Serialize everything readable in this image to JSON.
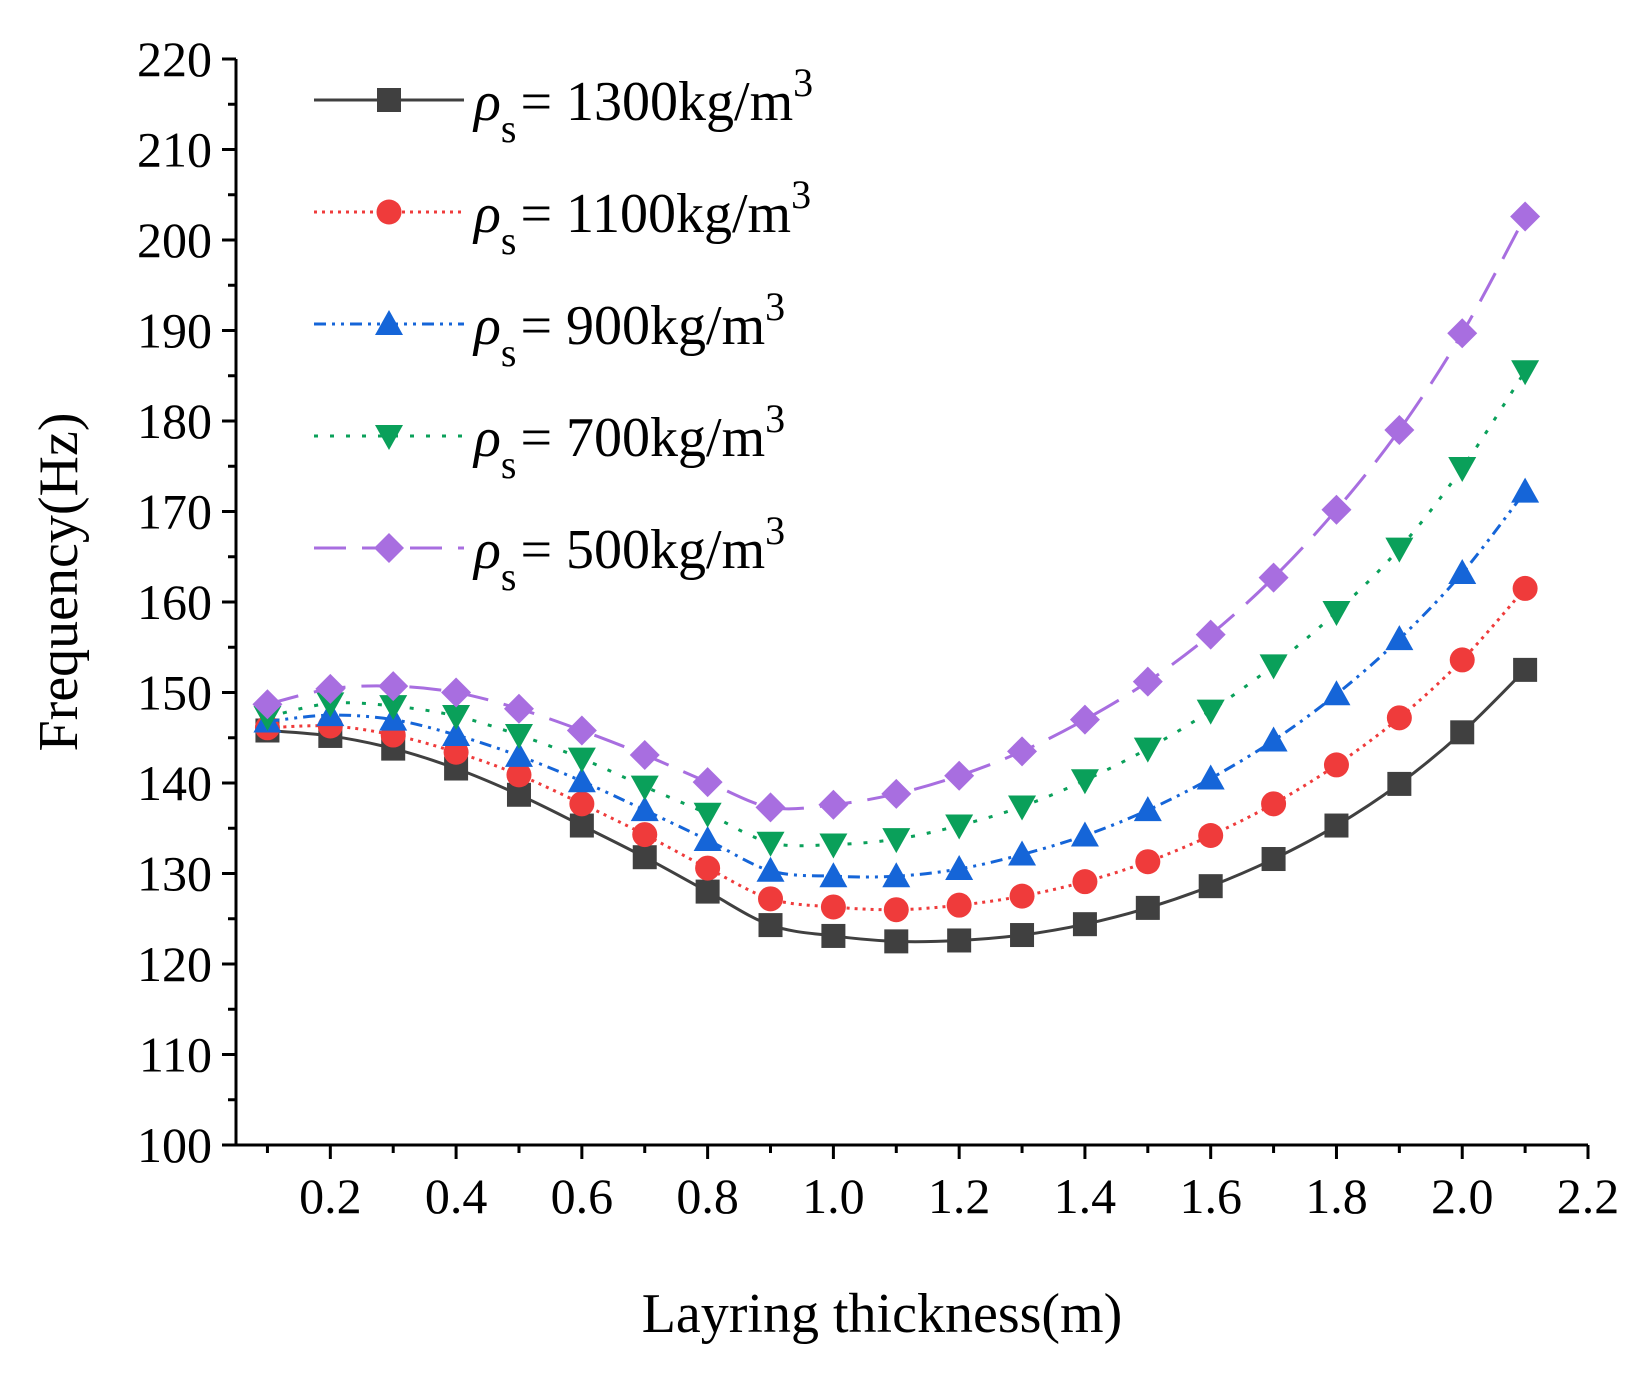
{
  "chart_data": {
    "type": "line",
    "title": "",
    "xlabel": "Layring thickness(m)",
    "ylabel": "Frequency(Hz)",
    "xlim": [
      0.05,
      2.2
    ],
    "ylim": [
      100,
      220
    ],
    "xticks": [
      "0.2",
      "0.4",
      "0.6",
      "0.8",
      "1.0",
      "1.2",
      "1.4",
      "1.6",
      "1.8",
      "2.0",
      "2.2"
    ],
    "yticks": [
      "100",
      "110",
      "120",
      "130",
      "140",
      "150",
      "160",
      "170",
      "180",
      "190",
      "200",
      "210",
      "220"
    ],
    "grid": false,
    "legend_position": "top-left",
    "x": [
      0.1,
      0.2,
      0.3,
      0.4,
      0.5,
      0.6,
      0.7,
      0.8,
      0.9,
      1.0,
      1.1,
      1.2,
      1.3,
      1.4,
      1.5,
      1.6,
      1.7,
      1.8,
      1.9,
      2.0,
      2.1
    ],
    "series": [
      {
        "name": "ρs= 1300kg/m3",
        "legend": {
          "rho": "ρ",
          "sub": "s",
          "text": "= 1300kg/m",
          "sup": "3"
        },
        "color": "#404040",
        "marker": "square",
        "dash": "solid",
        "values": [
          145.8,
          145.2,
          143.8,
          141.6,
          138.7,
          135.3,
          131.8,
          128.0,
          124.3,
          123.1,
          122.5,
          122.6,
          123.2,
          124.4,
          126.2,
          128.6,
          131.6,
          135.3,
          139.9,
          145.6,
          152.5
        ]
      },
      {
        "name": "ρs= 1100kg/m3",
        "legend": {
          "rho": "ρ",
          "sub": "s",
          "text": "= 1100kg/m",
          "sup": "3"
        },
        "color": "#ef3b3b",
        "marker": "circle",
        "dash": "dot",
        "values": [
          146.1,
          146.3,
          145.3,
          143.4,
          140.9,
          137.7,
          134.3,
          130.6,
          127.2,
          126.3,
          126.0,
          126.5,
          127.5,
          129.1,
          131.3,
          134.2,
          137.7,
          142.0,
          147.2,
          153.6,
          161.5
        ]
      },
      {
        "name": "ρs= 900kg/m3",
        "legend": {
          "rho": "ρ",
          "sub": "s",
          "text": "= 900kg/m",
          "sup": "3"
        },
        "color": "#1565d8",
        "marker": "triangle-up",
        "dash": "dashdotdot",
        "values": [
          146.8,
          147.5,
          147.0,
          145.3,
          143.0,
          140.2,
          137.0,
          133.7,
          130.3,
          129.7,
          129.7,
          130.5,
          132.1,
          134.2,
          137.0,
          140.5,
          144.7,
          149.8,
          155.9,
          163.2,
          172.2
        ]
      },
      {
        "name": "ρs= 700kg/m3",
        "legend": {
          "rho": "ρ",
          "sub": "s",
          "text": "= 700kg/m",
          "sup": "3"
        },
        "color": "#0aa05a",
        "marker": "triangle-down",
        "dash": "dot-sparse",
        "values": [
          147.3,
          148.8,
          148.5,
          147.4,
          145.3,
          142.7,
          139.6,
          136.6,
          133.4,
          133.2,
          133.8,
          135.3,
          137.4,
          140.3,
          143.8,
          148.0,
          153.0,
          158.9,
          165.9,
          174.8,
          185.5
        ]
      },
      {
        "name": "ρs= 500kg/m3",
        "legend": {
          "rho": "ρ",
          "sub": "s",
          "text": "= 500kg/m",
          "sup": "3"
        },
        "color": "#a86ee0",
        "marker": "diamond",
        "dash": "longdash",
        "values": [
          148.7,
          150.4,
          150.7,
          150.0,
          148.2,
          145.8,
          143.1,
          140.1,
          137.3,
          137.6,
          138.8,
          140.8,
          143.5,
          147.0,
          151.2,
          156.4,
          162.7,
          170.2,
          179.0,
          189.7,
          202.6
        ]
      }
    ]
  }
}
